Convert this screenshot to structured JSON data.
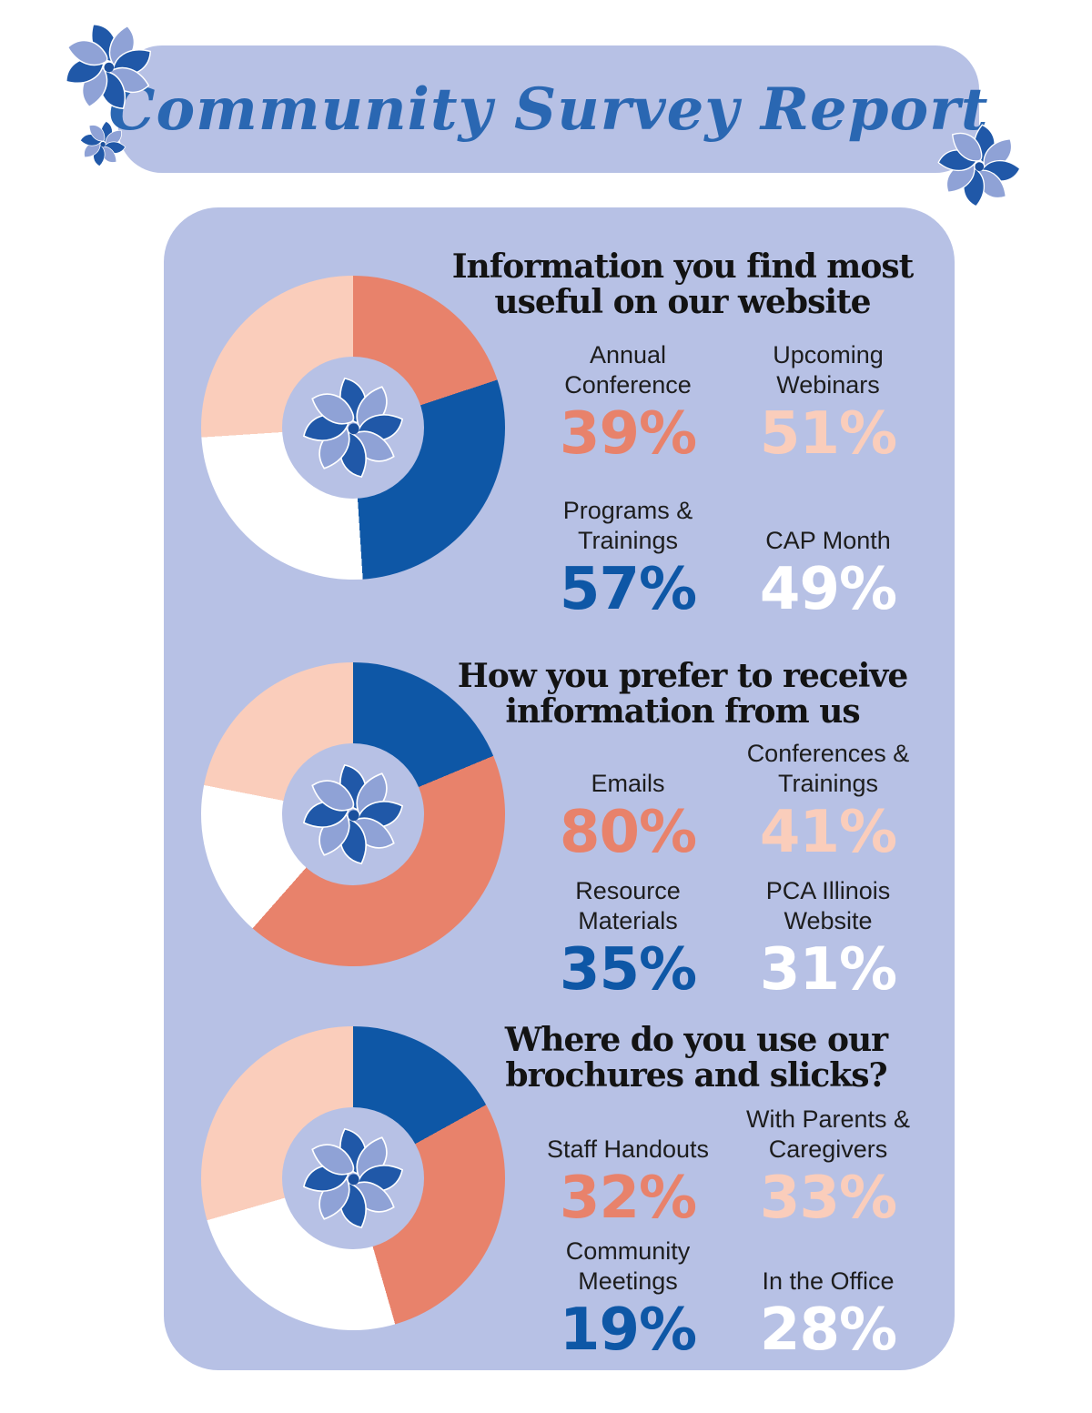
{
  "palette": {
    "lavender": "#B7C1E5",
    "salmon": "#E8826B",
    "pink": "#FACDBB",
    "blue": "#0E57A6",
    "white": "#FFFFFF",
    "scriptBlue": "#2A67B2",
    "petalDark": "#2058A8",
    "petalLight": "#8FA2D6",
    "petalCenter": "#1B4F9C",
    "titleText": "#131313"
  },
  "header": {
    "title": "Community Survey Report"
  },
  "sections": [
    {
      "title": "Information you find most useful on our website",
      "title_lines": [
        "Information you find most",
        "useful on our website"
      ],
      "stats": [
        {
          "label": "Annual Conference",
          "value": "39%",
          "color": "salmon"
        },
        {
          "label": "Upcoming Webinars",
          "value": "51%",
          "color": "pink"
        },
        {
          "label": "Programs & Trainings",
          "value": "57%",
          "color": "blue"
        },
        {
          "label": "CAP Month",
          "value": "49%",
          "color": "white"
        }
      ]
    },
    {
      "title": "How you prefer to receive information from us",
      "title_lines": [
        "How you prefer to receive",
        "information from us"
      ],
      "stats": [
        {
          "label": "Emails",
          "value": "80%",
          "color": "salmon"
        },
        {
          "label": "Conferences & Trainings",
          "value": "41%",
          "color": "pink"
        },
        {
          "label": "Resource Materials",
          "value": "35%",
          "color": "blue"
        },
        {
          "label": "PCA Illinois Website",
          "value": "31%",
          "color": "white"
        }
      ]
    },
    {
      "title": "Where do you use our brochures and slicks?",
      "title_lines": [
        "Where do you use our",
        "brochures and slicks?"
      ],
      "stats": [
        {
          "label": "Staff Handouts",
          "value": "32%",
          "color": "salmon"
        },
        {
          "label": "With Parents & Caregivers",
          "value": "33%",
          "color": "pink"
        },
        {
          "label": "Community Meetings",
          "value": "19%",
          "color": "blue"
        },
        {
          "label": "In the Office",
          "value": "28%",
          "color": "white"
        }
      ]
    }
  ],
  "chart_data": [
    {
      "type": "pie",
      "subtype": "donut",
      "title": "Information you find most useful on our website",
      "categories": [
        "Annual Conference",
        "Programs & Trainings",
        "CAP Month",
        "Upcoming Webinars"
      ],
      "values": [
        39,
        57,
        49,
        51
      ],
      "colors": [
        "salmon",
        "blue",
        "white",
        "pink"
      ],
      "unit": "%",
      "layout": {
        "start_angle_deg": 0,
        "direction": "clockwise",
        "segments_proportional_to_values": true,
        "legend": "none"
      }
    },
    {
      "type": "pie",
      "subtype": "donut",
      "title": "How you prefer to receive information from us",
      "categories": [
        "Resource Materials",
        "Emails",
        "PCA Illinois Website",
        "Conferences & Trainings"
      ],
      "values": [
        35,
        80,
        31,
        41
      ],
      "colors": [
        "blue",
        "salmon",
        "white",
        "pink"
      ],
      "unit": "%",
      "layout": {
        "start_angle_deg": 0,
        "direction": "clockwise",
        "segments_proportional_to_values": true,
        "legend": "none"
      }
    },
    {
      "type": "pie",
      "subtype": "donut",
      "title": "Where do you use our brochures and slicks?",
      "categories": [
        "Community Meetings",
        "Staff Handouts",
        "In the Office",
        "With Parents & Caregivers"
      ],
      "values": [
        19,
        32,
        28,
        33
      ],
      "colors": [
        "blue",
        "salmon",
        "white",
        "pink"
      ],
      "unit": "%",
      "layout": {
        "start_angle_deg": 0,
        "direction": "clockwise",
        "segments_proportional_to_values": true,
        "legend": "none"
      }
    }
  ]
}
